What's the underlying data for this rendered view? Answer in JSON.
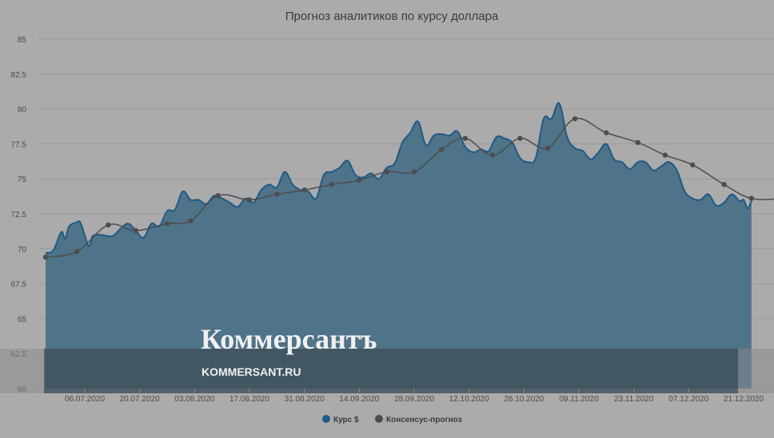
{
  "chart_data": {
    "type": "area",
    "title": "Прогноз аналитиков по курсу доллара",
    "ylim": [
      60,
      85
    ],
    "y_ticks": [
      "60",
      "62.5",
      "65",
      "67.5",
      "70",
      "72.5",
      "75",
      "77.5",
      "80",
      "82.5",
      "85"
    ],
    "x_ticks": [
      {
        "label": "06.07.2020",
        "date": "2020-07-06"
      },
      {
        "label": "20.07.2020",
        "date": "2020-07-20"
      },
      {
        "label": "03.08.2020",
        "date": "2020-08-03"
      },
      {
        "label": "17.08.2020",
        "date": "2020-08-17"
      },
      {
        "label": "31.08.2020",
        "date": "2020-08-31"
      },
      {
        "label": "14.09.2020",
        "date": "2020-09-14"
      },
      {
        "label": "28.09.2020",
        "date": "2020-09-28"
      },
      {
        "label": "12.10.2020",
        "date": "2020-10-12"
      },
      {
        "label": "26.10.2020",
        "date": "2020-10-26"
      },
      {
        "label": "09.11.2020",
        "date": "2020-11-09"
      },
      {
        "label": "23.11.2020",
        "date": "2020-11-23"
      },
      {
        "label": "07.12.2020",
        "date": "2020-12-07"
      },
      {
        "label": "21.12.2020",
        "date": "2020-12-21"
      }
    ],
    "grid": true,
    "legend_position": "bottom-center",
    "series": [
      {
        "name": "Курс $",
        "type": "area",
        "color": "#1f5a86",
        "fill": "#4f7388",
        "points": [
          [
            "2020-06-26",
            69.7
          ],
          [
            "2020-06-28",
            69.9
          ],
          [
            "2020-06-30",
            71.2
          ],
          [
            "2020-07-01",
            70.7
          ],
          [
            "2020-07-02",
            71.6
          ],
          [
            "2020-07-04",
            71.9
          ],
          [
            "2020-07-05",
            71.8
          ],
          [
            "2020-07-07",
            70.2
          ],
          [
            "2020-07-08",
            70.9
          ],
          [
            "2020-07-10",
            71.0
          ],
          [
            "2020-07-13",
            70.9
          ],
          [
            "2020-07-15",
            71.4
          ],
          [
            "2020-07-17",
            71.8
          ],
          [
            "2020-07-19",
            71.3
          ],
          [
            "2020-07-21",
            70.8
          ],
          [
            "2020-07-23",
            71.8
          ],
          [
            "2020-07-25",
            71.6
          ],
          [
            "2020-07-27",
            72.7
          ],
          [
            "2020-07-29",
            72.8
          ],
          [
            "2020-07-31",
            74.1
          ],
          [
            "2020-08-02",
            73.5
          ],
          [
            "2020-08-04",
            73.5
          ],
          [
            "2020-08-06",
            73.2
          ],
          [
            "2020-08-08",
            73.8
          ],
          [
            "2020-08-10",
            73.6
          ],
          [
            "2020-08-12",
            73.3
          ],
          [
            "2020-08-14",
            73.0
          ],
          [
            "2020-08-16",
            73.6
          ],
          [
            "2020-08-18",
            73.3
          ],
          [
            "2020-08-20",
            74.2
          ],
          [
            "2020-08-22",
            74.6
          ],
          [
            "2020-08-24",
            74.4
          ],
          [
            "2020-08-26",
            75.5
          ],
          [
            "2020-08-28",
            74.6
          ],
          [
            "2020-08-30",
            74.2
          ],
          [
            "2020-09-01",
            74.1
          ],
          [
            "2020-09-03",
            73.6
          ],
          [
            "2020-09-05",
            75.3
          ],
          [
            "2020-09-07",
            75.5
          ],
          [
            "2020-09-09",
            75.8
          ],
          [
            "2020-09-11",
            76.3
          ],
          [
            "2020-09-13",
            75.3
          ],
          [
            "2020-09-15",
            75.1
          ],
          [
            "2020-09-17",
            75.4
          ],
          [
            "2020-09-19",
            75.0
          ],
          [
            "2020-09-21",
            75.8
          ],
          [
            "2020-09-23",
            76.1
          ],
          [
            "2020-09-25",
            77.6
          ],
          [
            "2020-09-27",
            78.3
          ],
          [
            "2020-09-29",
            79.1
          ],
          [
            "2020-10-01",
            77.4
          ],
          [
            "2020-10-03",
            78.1
          ],
          [
            "2020-10-05",
            78.2
          ],
          [
            "2020-10-07",
            78.1
          ],
          [
            "2020-10-09",
            78.4
          ],
          [
            "2020-10-11",
            77.3
          ],
          [
            "2020-10-13",
            76.9
          ],
          [
            "2020-10-15",
            77.1
          ],
          [
            "2020-10-17",
            77.0
          ],
          [
            "2020-10-19",
            78.0
          ],
          [
            "2020-10-21",
            77.9
          ],
          [
            "2020-10-23",
            77.6
          ],
          [
            "2020-10-25",
            76.5
          ],
          [
            "2020-10-27",
            76.2
          ],
          [
            "2020-10-29",
            76.5
          ],
          [
            "2020-10-31",
            79.3
          ],
          [
            "2020-11-02",
            79.3
          ],
          [
            "2020-11-04",
            80.4
          ],
          [
            "2020-11-06",
            78.0
          ],
          [
            "2020-11-08",
            77.2
          ],
          [
            "2020-11-10",
            77.0
          ],
          [
            "2020-11-12",
            76.4
          ],
          [
            "2020-11-14",
            76.9
          ],
          [
            "2020-11-16",
            77.5
          ],
          [
            "2020-11-18",
            76.4
          ],
          [
            "2020-11-20",
            76.2
          ],
          [
            "2020-11-22",
            75.7
          ],
          [
            "2020-11-24",
            76.2
          ],
          [
            "2020-11-26",
            76.2
          ],
          [
            "2020-11-28",
            75.6
          ],
          [
            "2020-11-30",
            75.9
          ],
          [
            "2020-12-02",
            76.2
          ],
          [
            "2020-12-04",
            75.6
          ],
          [
            "2020-12-06",
            74.1
          ],
          [
            "2020-12-08",
            73.6
          ],
          [
            "2020-12-10",
            73.5
          ],
          [
            "2020-12-12",
            73.9
          ],
          [
            "2020-12-14",
            73.1
          ],
          [
            "2020-12-16",
            73.3
          ],
          [
            "2020-12-18",
            73.9
          ],
          [
            "2020-12-20",
            73.4
          ],
          [
            "2020-12-21",
            73.5
          ],
          [
            "2020-12-22",
            72.9
          ],
          [
            "2020-12-23",
            73.4
          ]
        ]
      },
      {
        "name": "Консенсус-прогноз",
        "type": "line",
        "color": "#4d4d4d",
        "points": [
          [
            "2020-06-26",
            69.4
          ],
          [
            "2020-07-04",
            69.8
          ],
          [
            "2020-07-12",
            71.7
          ],
          [
            "2020-07-19",
            71.3
          ],
          [
            "2020-07-27",
            71.8
          ],
          [
            "2020-08-02",
            72.0
          ],
          [
            "2020-08-09",
            73.8
          ],
          [
            "2020-08-17",
            73.5
          ],
          [
            "2020-08-24",
            73.9
          ],
          [
            "2020-08-31",
            74.2
          ],
          [
            "2020-09-07",
            74.6
          ],
          [
            "2020-09-14",
            74.9
          ],
          [
            "2020-09-21",
            75.5
          ],
          [
            "2020-09-28",
            75.5
          ],
          [
            "2020-10-05",
            77.1
          ],
          [
            "2020-10-11",
            77.9
          ],
          [
            "2020-10-18",
            76.7
          ],
          [
            "2020-10-25",
            77.9
          ],
          [
            "2020-11-01",
            77.2
          ],
          [
            "2020-11-08",
            79.3
          ],
          [
            "2020-11-16",
            78.3
          ],
          [
            "2020-11-24",
            77.6
          ],
          [
            "2020-12-01",
            76.7
          ],
          [
            "2020-12-08",
            76.0
          ],
          [
            "2020-12-16",
            74.6
          ],
          [
            "2020-12-23",
            73.6
          ],
          [
            "2020-12-31",
            73.6
          ]
        ]
      }
    ]
  },
  "watermark": {
    "brand": "Коммерсантъ",
    "url": "KOMMERSANT.RU"
  },
  "colors": {
    "background": "#ababab",
    "area_fill": "#4f7388",
    "area_line": "#1f5a86",
    "consensus_line": "#4d4d4d",
    "watermark_band": "#3f505b"
  }
}
